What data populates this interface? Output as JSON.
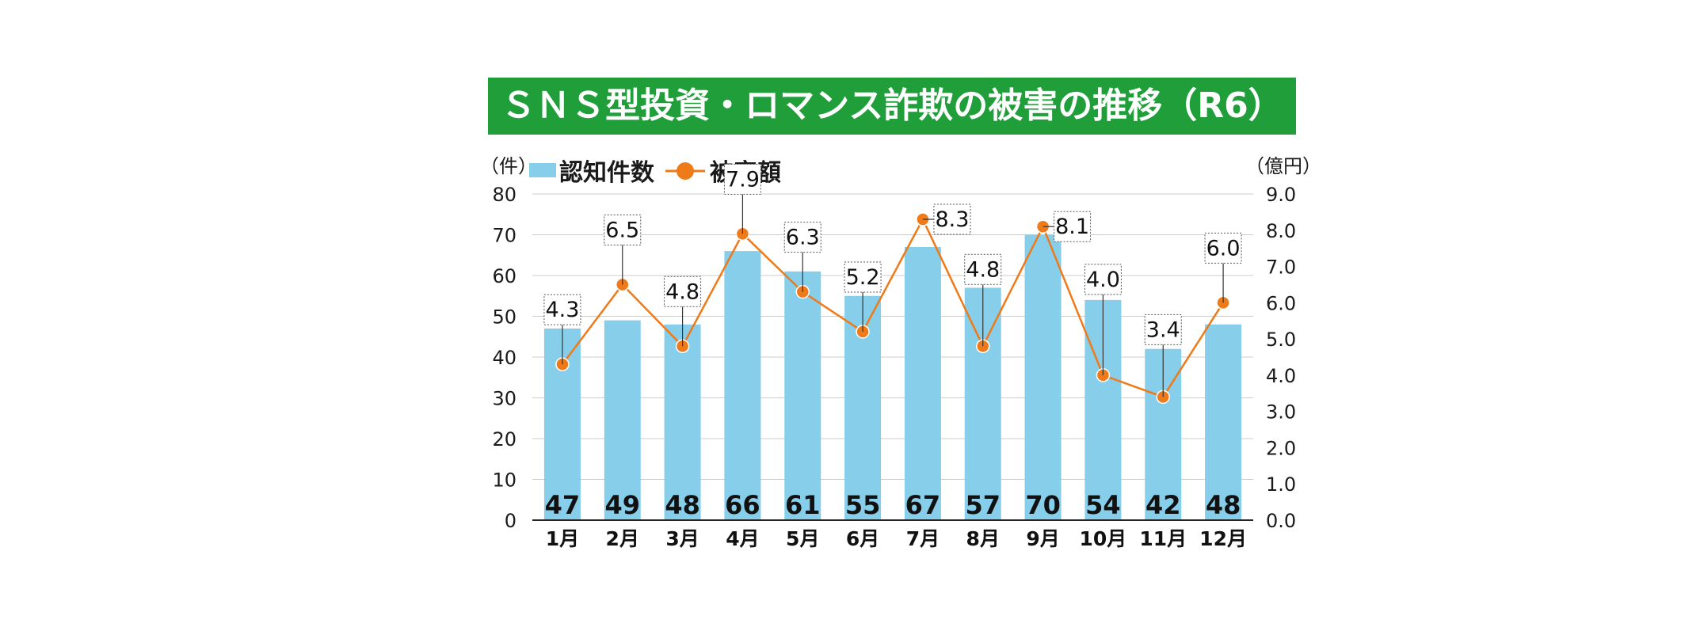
{
  "colors": {
    "title_bg": "#1f9e3a",
    "title_text": "#ffffff",
    "bar": "#87ceeb",
    "line": "#ef7a1a",
    "grid": "#cccccc"
  },
  "chart_data": {
    "type": "bar",
    "title": "ＳＮＳ型投資・ロマンス詐欺の被害の推移（R6）",
    "categories": [
      "1月",
      "2月",
      "3月",
      "4月",
      "5月",
      "6月",
      "7月",
      "8月",
      "9月",
      "10月",
      "11月",
      "12月"
    ],
    "left_unit": "（件）",
    "right_unit": "（億円）",
    "y_left_ticks": [
      "0",
      "10",
      "20",
      "30",
      "40",
      "50",
      "60",
      "70",
      "80"
    ],
    "y_right_ticks": [
      "0.0",
      "1.0",
      "2.0",
      "3.0",
      "4.0",
      "5.0",
      "6.0",
      "7.0",
      "8.0",
      "9.0"
    ],
    "ylim": [
      0,
      80
    ],
    "ylim_right": [
      0,
      9
    ],
    "grid": true,
    "legend_position": "top-left",
    "series": [
      {
        "name": "認知件数",
        "type": "bar",
        "axis": "left",
        "values": [
          47,
          49,
          48,
          66,
          61,
          55,
          67,
          57,
          70,
          54,
          42,
          48
        ],
        "labels": [
          "47",
          "49",
          "48",
          "66",
          "61",
          "55",
          "67",
          "57",
          "70",
          "54",
          "42",
          "48"
        ]
      },
      {
        "name": "被害額",
        "type": "line",
        "axis": "right",
        "values": [
          4.3,
          6.5,
          4.8,
          7.9,
          6.3,
          5.2,
          8.3,
          4.8,
          8.1,
          4.0,
          3.4,
          6.0
        ],
        "labels": [
          "4.3",
          "6.5",
          "4.8",
          "7.9",
          "6.3",
          "5.2",
          "8.3",
          "4.8",
          "8.1",
          "4.0",
          "3.4",
          "6.0"
        ]
      }
    ]
  }
}
